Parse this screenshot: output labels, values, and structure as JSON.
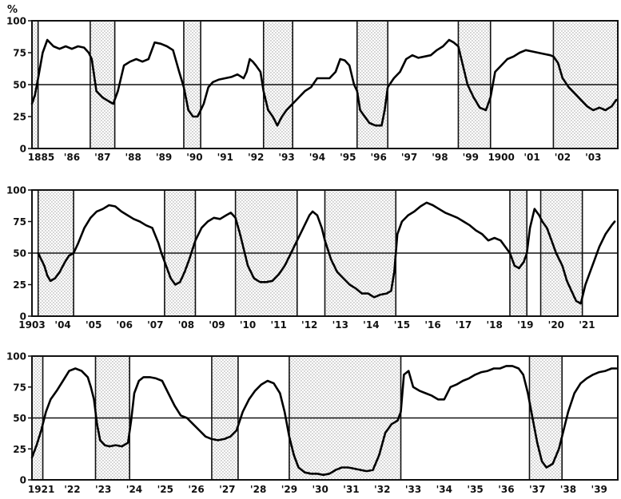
{
  "chart_data": [
    {
      "type": "line",
      "ylabel": "%",
      "ylim": [
        0,
        100
      ],
      "yticks": [
        0,
        25,
        50,
        75,
        100
      ],
      "reference_line": 50,
      "xlim": [
        1885.0,
        1904.1
      ],
      "x_tick_labels": [
        {
          "label": "1885",
          "x": 1885.3
        },
        {
          "label": "'86",
          "x": 1886.3
        },
        {
          "label": "'87",
          "x": 1887.3
        },
        {
          "label": "'88",
          "x": 1888.3
        },
        {
          "label": "'89",
          "x": 1889.3
        },
        {
          "label": "'90",
          "x": 1890.3
        },
        {
          "label": "'91",
          "x": 1891.3
        },
        {
          "label": "'92",
          "x": 1892.3
        },
        {
          "label": "'93",
          "x": 1893.3
        },
        {
          "label": "'94",
          "x": 1894.3
        },
        {
          "label": "'95",
          "x": 1895.3
        },
        {
          "label": "'96",
          "x": 1896.3
        },
        {
          "label": "'97",
          "x": 1897.3
        },
        {
          "label": "'98",
          "x": 1898.3
        },
        {
          "label": "'99",
          "x": 1899.3
        },
        {
          "label": "1900",
          "x": 1900.3
        },
        {
          "label": "'01",
          "x": 1901.3
        },
        {
          "label": "'02",
          "x": 1902.3
        },
        {
          "label": "'03",
          "x": 1903.3
        }
      ],
      "shaded_periods": [
        [
          1885.0,
          1885.2
        ],
        [
          1886.9,
          1887.7
        ],
        [
          1889.95,
          1890.5
        ],
        [
          1892.55,
          1893.5
        ],
        [
          1895.6,
          1896.6
        ],
        [
          1898.9,
          1899.95
        ],
        [
          1902.0,
          1904.1
        ]
      ],
      "series": [
        {
          "x": [
            1885.0,
            1885.1,
            1885.2,
            1885.35,
            1885.5,
            1885.7,
            1885.9,
            1886.1,
            1886.3,
            1886.5,
            1886.7,
            1886.85,
            1886.95,
            1887.1,
            1887.3,
            1887.5,
            1887.65,
            1887.8,
            1888.0,
            1888.2,
            1888.4,
            1888.6,
            1888.8,
            1889.0,
            1889.2,
            1889.4,
            1889.6,
            1889.8,
            1889.95,
            1890.1,
            1890.25,
            1890.4,
            1890.5,
            1890.6,
            1890.75,
            1890.9,
            1891.1,
            1891.3,
            1891.5,
            1891.7,
            1891.9,
            1892.0,
            1892.1,
            1892.2,
            1892.3,
            1892.45,
            1892.55,
            1892.7,
            1892.85,
            1893.0,
            1893.15,
            1893.3,
            1893.5,
            1893.7,
            1893.9,
            1894.1,
            1894.3,
            1894.5,
            1894.7,
            1894.9,
            1895.05,
            1895.2,
            1895.35,
            1895.5,
            1895.6,
            1895.7,
            1895.85,
            1896.0,
            1896.2,
            1896.4,
            1896.5,
            1896.6,
            1896.8,
            1897.0,
            1897.2,
            1897.4,
            1897.6,
            1897.8,
            1898.0,
            1898.2,
            1898.4,
            1898.6,
            1898.75,
            1898.9,
            1899.05,
            1899.2,
            1899.4,
            1899.6,
            1899.8,
            1899.95,
            1900.1,
            1900.3,
            1900.5,
            1900.7,
            1900.9,
            1901.1,
            1901.3,
            1901.5,
            1901.7,
            1901.9,
            1902.0,
            1902.15,
            1902.3,
            1902.5,
            1902.7,
            1902.9,
            1903.1,
            1903.3,
            1903.5,
            1903.7,
            1903.9,
            1904.05
          ],
          "y": [
            35,
            42,
            55,
            75,
            85,
            80,
            78,
            80,
            78,
            80,
            79,
            75,
            70,
            45,
            40,
            37,
            35,
            45,
            65,
            68,
            70,
            68,
            70,
            83,
            82,
            80,
            77,
            60,
            48,
            30,
            25,
            25,
            30,
            35,
            48,
            52,
            54,
            55,
            56,
            58,
            55,
            60,
            70,
            68,
            65,
            60,
            45,
            30,
            25,
            18,
            25,
            30,
            35,
            40,
            45,
            48,
            55,
            55,
            55,
            60,
            70,
            69,
            65,
            50,
            45,
            30,
            25,
            20,
            18,
            18,
            30,
            48,
            55,
            60,
            70,
            73,
            71,
            72,
            73,
            77,
            80,
            85,
            83,
            80,
            65,
            50,
            40,
            32,
            30,
            40,
            60,
            65,
            70,
            72,
            75,
            77,
            76,
            75,
            74,
            73,
            72,
            67,
            55,
            48,
            43,
            38,
            33,
            30,
            32,
            30,
            33,
            38
          ]
        }
      ]
    },
    {
      "type": "line",
      "ylabel": "",
      "ylim": [
        0,
        100
      ],
      "yticks": [
        0,
        25,
        50,
        75,
        100
      ],
      "reference_line": 50,
      "xlim": [
        1903.0,
        1922.0
      ],
      "x_tick_labels": [
        {
          "label": "1903",
          "x": 1903.0
        },
        {
          "label": "'04",
          "x": 1904.0
        },
        {
          "label": "'05",
          "x": 1905.0
        },
        {
          "label": "'06",
          "x": 1906.0
        },
        {
          "label": "'07",
          "x": 1907.0
        },
        {
          "label": "'08",
          "x": 1908.0
        },
        {
          "label": "'09",
          "x": 1909.0
        },
        {
          "label": "'10",
          "x": 1910.0
        },
        {
          "label": "'11",
          "x": 1911.0
        },
        {
          "label": "'12",
          "x": 1912.0
        },
        {
          "label": "'13",
          "x": 1913.0
        },
        {
          "label": "'14",
          "x": 1914.0
        },
        {
          "label": "'15",
          "x": 1915.0
        },
        {
          "label": "'16",
          "x": 1916.0
        },
        {
          "label": "'17",
          "x": 1917.0
        },
        {
          "label": "'18",
          "x": 1918.0
        },
        {
          "label": "'19",
          "x": 1919.0
        },
        {
          "label": "'20",
          "x": 1920.0
        },
        {
          "label": "'21",
          "x": 1921.0
        }
      ],
      "shaded_periods": [
        [
          1903.2,
          1904.35
        ],
        [
          1907.3,
          1908.3
        ],
        [
          1909.6,
          1911.6
        ],
        [
          1912.5,
          1914.8
        ],
        [
          1918.5,
          1919.05
        ],
        [
          1919.5,
          1920.85
        ]
      ],
      "series": [
        {
          "x": [
            1903.2,
            1903.3,
            1903.4,
            1903.5,
            1903.6,
            1903.75,
            1903.9,
            1904.05,
            1904.2,
            1904.35,
            1904.5,
            1904.7,
            1904.9,
            1905.1,
            1905.3,
            1905.5,
            1905.7,
            1905.9,
            1906.1,
            1906.3,
            1906.5,
            1906.7,
            1906.9,
            1907.1,
            1907.2,
            1907.35,
            1907.5,
            1907.65,
            1907.8,
            1907.95,
            1908.1,
            1908.3,
            1908.5,
            1908.7,
            1908.9,
            1909.1,
            1909.3,
            1909.45,
            1909.6,
            1909.75,
            1909.9,
            1910.0,
            1910.2,
            1910.4,
            1910.6,
            1910.8,
            1911.0,
            1911.2,
            1911.4,
            1911.6,
            1911.8,
            1912.0,
            1912.1,
            1912.25,
            1912.4,
            1912.5,
            1912.7,
            1912.9,
            1913.1,
            1913.3,
            1913.5,
            1913.7,
            1913.9,
            1914.1,
            1914.3,
            1914.5,
            1914.65,
            1914.75,
            1914.85,
            1915.0,
            1915.2,
            1915.4,
            1915.6,
            1915.8,
            1916.0,
            1916.2,
            1916.4,
            1916.6,
            1916.8,
            1917.0,
            1917.2,
            1917.4,
            1917.6,
            1917.8,
            1918.0,
            1918.2,
            1918.35,
            1918.5,
            1918.65,
            1918.8,
            1918.95,
            1919.05,
            1919.15,
            1919.3,
            1919.45,
            1919.55,
            1919.7,
            1919.85,
            1920.0,
            1920.2,
            1920.35,
            1920.5,
            1920.65,
            1920.8,
            1920.95,
            1921.1,
            1921.25,
            1921.4,
            1921.6,
            1921.8,
            1921.9
          ],
          "y": [
            50,
            45,
            40,
            32,
            28,
            30,
            35,
            42,
            48,
            50,
            58,
            70,
            78,
            83,
            85,
            88,
            87,
            83,
            80,
            77,
            75,
            72,
            70,
            58,
            50,
            40,
            30,
            25,
            27,
            35,
            45,
            60,
            70,
            75,
            78,
            77,
            80,
            82,
            78,
            65,
            50,
            40,
            30,
            27,
            27,
            28,
            33,
            40,
            50,
            60,
            70,
            80,
            83,
            80,
            70,
            60,
            45,
            35,
            30,
            25,
            22,
            18,
            18,
            15,
            17,
            18,
            20,
            35,
            65,
            75,
            80,
            83,
            87,
            90,
            88,
            85,
            82,
            80,
            78,
            75,
            72,
            68,
            65,
            60,
            62,
            60,
            55,
            50,
            40,
            38,
            43,
            50,
            70,
            85,
            80,
            75,
            70,
            60,
            50,
            40,
            28,
            20,
            12,
            10,
            25,
            35,
            45,
            55,
            65,
            72,
            75
          ]
        }
      ]
    },
    {
      "type": "line",
      "ylabel": "",
      "ylim": [
        0,
        100
      ],
      "yticks": [
        0,
        25,
        50,
        75,
        100
      ],
      "reference_line": 50,
      "xlim": [
        1921.0,
        1939.9
      ],
      "x_tick_labels": [
        {
          "label": "1921",
          "x": 1921.3
        },
        {
          "label": "'22",
          "x": 1922.3
        },
        {
          "label": "'23",
          "x": 1923.3
        },
        {
          "label": "'24",
          "x": 1924.3
        },
        {
          "label": "'25",
          "x": 1925.3
        },
        {
          "label": "'26",
          "x": 1926.3
        },
        {
          "label": "'27",
          "x": 1927.3
        },
        {
          "label": "'28",
          "x": 1928.3
        },
        {
          "label": "'29",
          "x": 1929.3
        },
        {
          "label": "'30",
          "x": 1930.3
        },
        {
          "label": "'31",
          "x": 1931.3
        },
        {
          "label": "'32",
          "x": 1932.3
        },
        {
          "label": "'33",
          "x": 1933.3
        },
        {
          "label": "'34",
          "x": 1934.3
        },
        {
          "label": "'35",
          "x": 1935.3
        },
        {
          "label": "'36",
          "x": 1936.3
        },
        {
          "label": "'37",
          "x": 1937.3
        },
        {
          "label": "'38",
          "x": 1938.3
        },
        {
          "label": "'39",
          "x": 1939.3
        }
      ],
      "shaded_periods": [
        [
          1921.0,
          1921.35
        ],
        [
          1923.05,
          1924.15
        ],
        [
          1926.8,
          1927.65
        ],
        [
          1929.3,
          1932.9
        ],
        [
          1937.05,
          1938.1
        ]
      ],
      "series": [
        {
          "x": [
            1921.0,
            1921.15,
            1921.3,
            1921.45,
            1921.6,
            1921.8,
            1922.0,
            1922.2,
            1922.4,
            1922.6,
            1922.8,
            1922.9,
            1923.0,
            1923.1,
            1923.2,
            1923.35,
            1923.5,
            1923.7,
            1923.9,
            1924.1,
            1924.2,
            1924.3,
            1924.45,
            1924.6,
            1924.8,
            1925.0,
            1925.2,
            1925.4,
            1925.6,
            1925.8,
            1926.0,
            1926.2,
            1926.4,
            1926.6,
            1926.8,
            1927.0,
            1927.2,
            1927.4,
            1927.6,
            1927.8,
            1928.0,
            1928.2,
            1928.4,
            1928.6,
            1928.8,
            1929.0,
            1929.15,
            1929.3,
            1929.45,
            1929.6,
            1929.8,
            1930.0,
            1930.2,
            1930.4,
            1930.6,
            1930.8,
            1931.0,
            1931.2,
            1931.4,
            1931.6,
            1931.8,
            1932.0,
            1932.2,
            1932.4,
            1932.6,
            1932.8,
            1932.9,
            1933.0,
            1933.15,
            1933.3,
            1933.5,
            1933.7,
            1933.9,
            1934.1,
            1934.3,
            1934.5,
            1934.7,
            1934.9,
            1935.1,
            1935.3,
            1935.5,
            1935.7,
            1935.9,
            1936.1,
            1936.3,
            1936.5,
            1936.7,
            1936.85,
            1937.0,
            1937.15,
            1937.3,
            1937.45,
            1937.6,
            1937.8,
            1938.0,
            1938.1,
            1938.3,
            1938.5,
            1938.7,
            1938.9,
            1939.1,
            1939.3,
            1939.5,
            1939.7,
            1939.85
          ],
          "y": [
            18,
            28,
            40,
            55,
            65,
            72,
            80,
            88,
            90,
            88,
            83,
            75,
            65,
            45,
            32,
            28,
            27,
            28,
            27,
            30,
            48,
            70,
            80,
            83,
            83,
            82,
            80,
            70,
            60,
            52,
            50,
            45,
            40,
            35,
            33,
            32,
            33,
            35,
            40,
            55,
            65,
            72,
            77,
            80,
            78,
            70,
            55,
            35,
            20,
            10,
            6,
            5,
            5,
            4,
            5,
            8,
            10,
            10,
            9,
            8,
            7,
            8,
            20,
            38,
            45,
            48,
            55,
            85,
            88,
            75,
            72,
            70,
            68,
            65,
            65,
            75,
            77,
            80,
            82,
            85,
            87,
            88,
            90,
            90,
            92,
            92,
            90,
            85,
            70,
            50,
            30,
            15,
            10,
            13,
            25,
            35,
            55,
            70,
            78,
            82,
            85,
            87,
            88,
            90,
            90
          ]
        }
      ]
    }
  ]
}
